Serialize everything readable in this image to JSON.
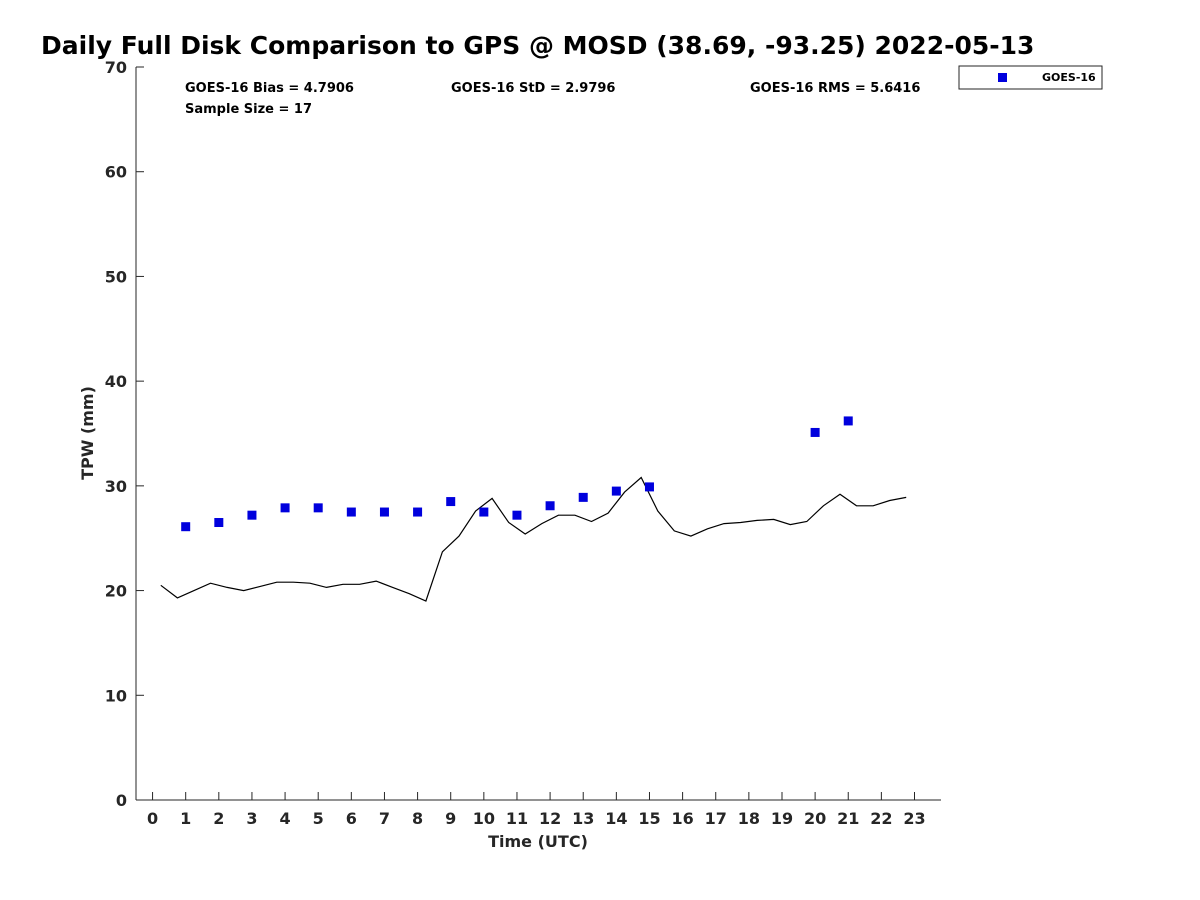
{
  "chart_data": {
    "type": "scatter",
    "title": "Daily Full Disk Comparison to GPS @ MOSD (38.69, -93.25) 2022-05-13",
    "xlabel": "Time (UTC)",
    "ylabel": "TPW (mm)",
    "xlim": [
      -0.5,
      23.8
    ],
    "ylim": [
      0,
      70
    ],
    "xticks": [
      0,
      1,
      2,
      3,
      4,
      5,
      6,
      7,
      8,
      9,
      10,
      11,
      12,
      13,
      14,
      15,
      16,
      17,
      18,
      19,
      20,
      21,
      22,
      23
    ],
    "yticks": [
      0,
      10,
      20,
      30,
      40,
      50,
      60,
      70
    ],
    "grid": false,
    "legend_position": "top-right",
    "stats": {
      "bias": "GOES-16 Bias = 4.7906",
      "std": "GOES-16 StD = 2.9796",
      "rms": "GOES-16 RMS = 5.6416",
      "sample": "Sample Size = 17"
    },
    "series": [
      {
        "name": "GOES-16",
        "kind": "scatter",
        "marker": "square",
        "color": "#0000dd",
        "x": [
          1,
          2,
          3,
          4,
          5,
          6,
          7,
          8,
          9,
          10,
          11,
          12,
          13,
          14,
          15,
          20,
          21
        ],
        "y": [
          26.1,
          26.5,
          27.2,
          27.9,
          27.9,
          27.5,
          27.5,
          27.5,
          28.5,
          27.5,
          27.2,
          28.1,
          28.9,
          29.5,
          29.9,
          35.1,
          36.2
        ]
      },
      {
        "kind": "line",
        "color": "#000000",
        "x": [
          0.25,
          0.75,
          1.25,
          1.75,
          2.25,
          2.75,
          3.25,
          3.75,
          4.25,
          4.75,
          5.25,
          5.75,
          6.25,
          6.75,
          7.25,
          7.75,
          8.25,
          8.75,
          9.25,
          9.75,
          10.25,
          10.75,
          11.25,
          11.75,
          12.25,
          12.75,
          13.25,
          13.75,
          14.25,
          14.75,
          15.25,
          15.75,
          16.25,
          16.75,
          17.25,
          17.75,
          18.25,
          18.75,
          19.25,
          19.75,
          20.25,
          20.75,
          21.25,
          21.75,
          22.25,
          22.75
        ],
        "y": [
          20.5,
          19.3,
          20.0,
          20.7,
          20.3,
          20.0,
          20.4,
          20.8,
          20.8,
          20.7,
          20.3,
          20.6,
          20.6,
          20.9,
          20.3,
          19.7,
          19.0,
          23.7,
          25.2,
          27.6,
          28.8,
          26.5,
          25.4,
          26.4,
          27.2,
          27.2,
          26.6,
          27.4,
          29.4,
          30.8,
          27.6,
          25.7,
          25.2,
          25.9,
          26.4,
          26.5,
          26.7,
          26.8,
          26.3,
          26.6,
          28.1,
          29.2,
          28.1,
          28.1,
          28.6,
          28.9
        ]
      }
    ]
  }
}
